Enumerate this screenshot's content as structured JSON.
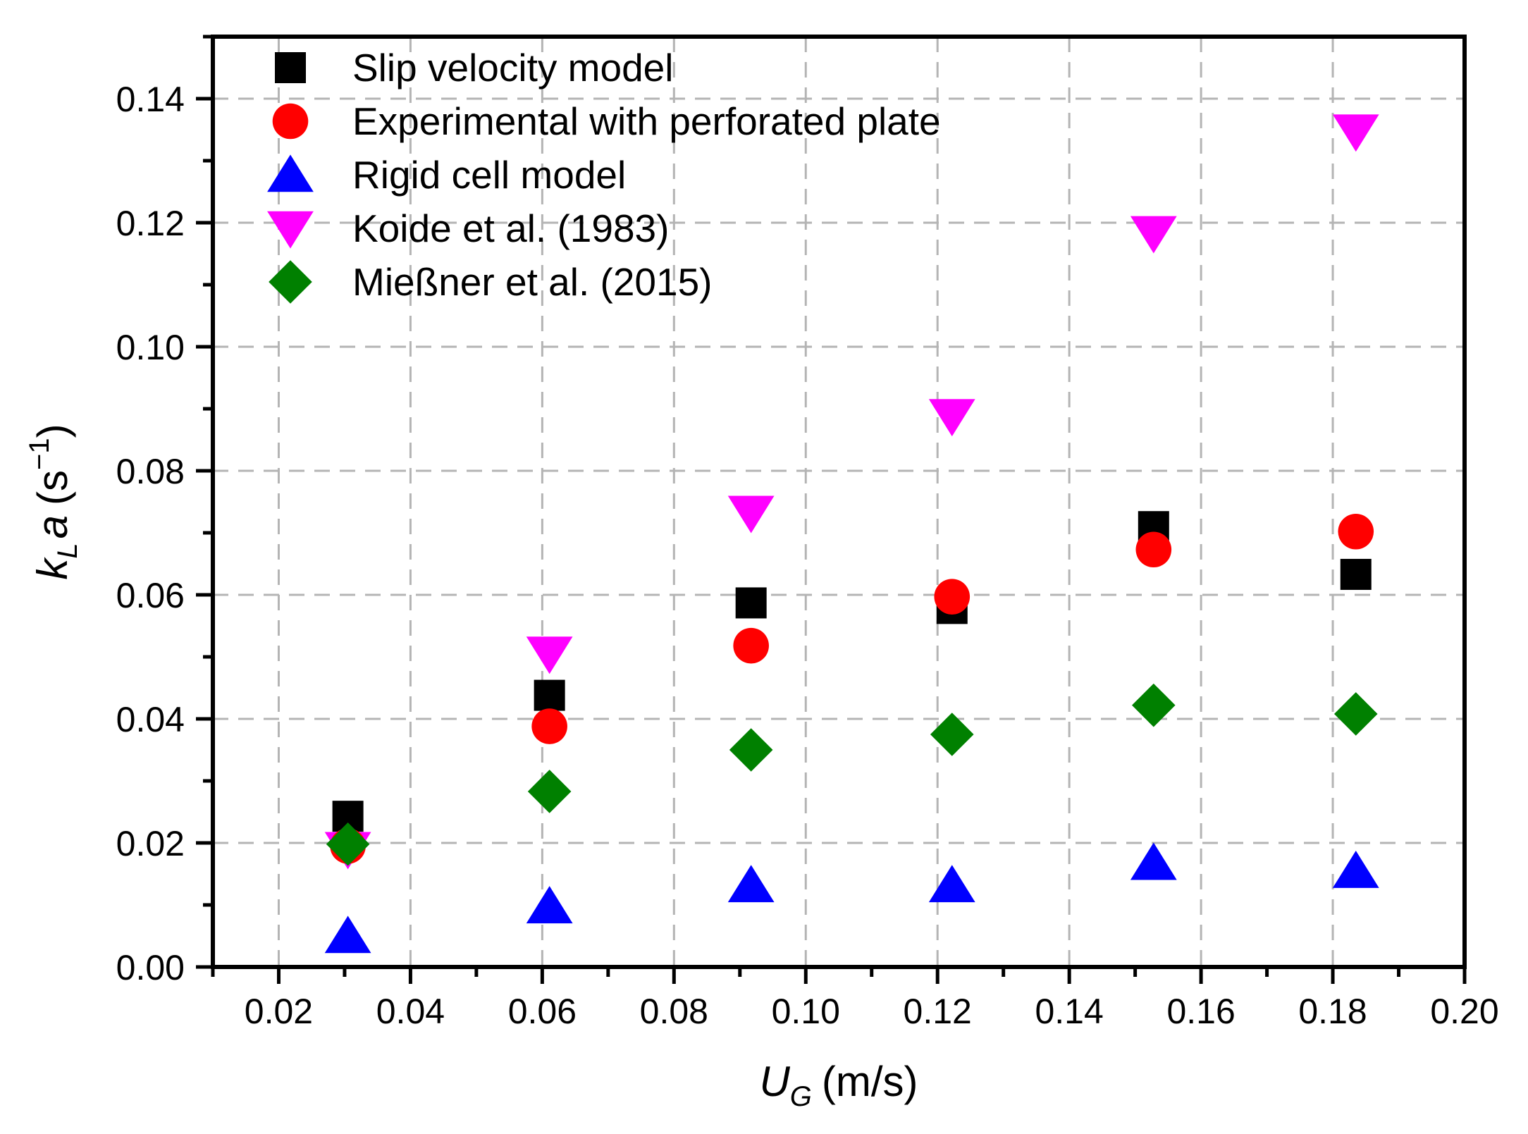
{
  "chart_data": {
    "type": "scatter",
    "title": "",
    "xlabel": {
      "main": "U",
      "sub": "G",
      "unit": "(m/s)"
    },
    "ylabel": {
      "main": "k",
      "sub": "L",
      "main2": "a",
      "unit_open": "(s",
      "unit_sup": "−1",
      "unit_close": ")"
    },
    "xlim": [
      0.01,
      0.2
    ],
    "ylim": [
      0.0,
      0.15
    ],
    "xticks": [
      0.02,
      0.04,
      0.06,
      0.08,
      0.1,
      0.12,
      0.14,
      0.16,
      0.18,
      0.2
    ],
    "xtick_labels": [
      "0.02",
      "0.04",
      "0.06",
      "0.08",
      "0.10",
      "0.12",
      "0.14",
      "0.16",
      "0.18",
      "0.20"
    ],
    "yticks": [
      0.0,
      0.02,
      0.04,
      0.06,
      0.08,
      0.1,
      0.12,
      0.14
    ],
    "ytick_labels": [
      "0.00",
      "0.02",
      "0.04",
      "0.06",
      "0.08",
      "0.10",
      "0.12",
      "0.14"
    ],
    "grid": true,
    "legend_position": "top-left",
    "series": [
      {
        "name": "Slip velocity model",
        "marker": "square",
        "color": "#000000",
        "x": [
          0.0305,
          0.0611,
          0.0917,
          0.1222,
          0.1528,
          0.1835
        ],
        "y": [
          0.0243,
          0.0438,
          0.0587,
          0.0578,
          0.071,
          0.0633
        ]
      },
      {
        "name": "Experimental with perforated plate",
        "marker": "circle",
        "color": "#ff0000",
        "x": [
          0.0305,
          0.0611,
          0.0917,
          0.1222,
          0.1528,
          0.1835
        ],
        "y": [
          0.0195,
          0.0388,
          0.0518,
          0.0597,
          0.0673,
          0.0702
        ]
      },
      {
        "name": "Rigid cell model",
        "marker": "triangle-up",
        "color": "#0000ff",
        "x": [
          0.0305,
          0.0611,
          0.0917,
          0.1222,
          0.1528,
          0.1835
        ],
        "y": [
          0.005,
          0.0098,
          0.0132,
          0.0132,
          0.0168,
          0.0155
        ]
      },
      {
        "name": "Koide et al. (1983)",
        "marker": "triangle-down",
        "color": "#ff00ff",
        "x": [
          0.0305,
          0.0611,
          0.0917,
          0.1222,
          0.1528,
          0.1835
        ],
        "y": [
          0.019,
          0.0505,
          0.0732,
          0.0888,
          0.1183,
          0.1347
        ]
      },
      {
        "name": "Mießner et al. (2015)",
        "marker": "diamond",
        "color": "#008000",
        "x": [
          0.0305,
          0.0611,
          0.0917,
          0.1222,
          0.1528,
          0.1835
        ],
        "y": [
          0.0198,
          0.0283,
          0.035,
          0.0375,
          0.0422,
          0.0408
        ]
      }
    ]
  }
}
